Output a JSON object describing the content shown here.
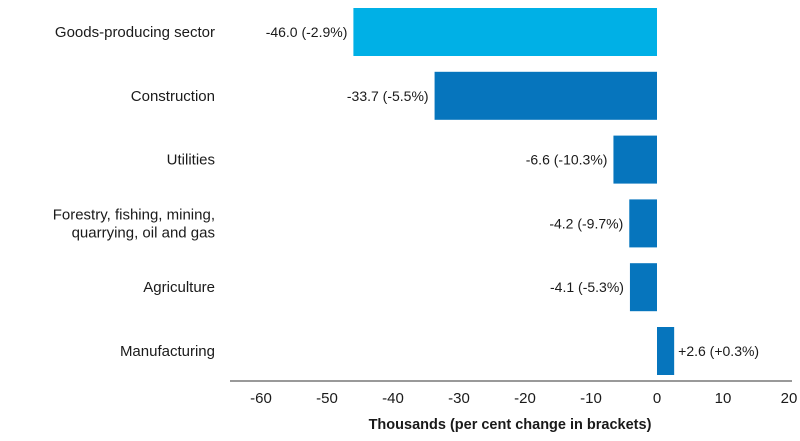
{
  "chart_data": {
    "type": "bar",
    "orientation": "horizontal",
    "title": "",
    "xlabel": "Thousands (per cent change in brackets)",
    "ylabel": "",
    "xlim": [
      -65,
      20
    ],
    "xticks": [
      -60,
      -50,
      -40,
      -30,
      -20,
      -10,
      0,
      10,
      20
    ],
    "grid": false,
    "categories": [
      [
        "Goods-producing sector"
      ],
      [
        "Construction"
      ],
      [
        "Utilities"
      ],
      [
        "Forestry, fishing, mining,",
        "quarrying, oil and gas"
      ],
      [
        "Agriculture"
      ],
      [
        "Manufacturing"
      ]
    ],
    "values": [
      -46.0,
      -33.7,
      -6.6,
      -4.2,
      -4.1,
      2.6
    ],
    "data_labels": [
      "-46.0 (-2.9%)",
      "-33.7 (-5.5%)",
      "-6.6 (-10.3%)",
      "-4.2 (-9.7%)",
      "-4.1 (-5.3%)",
      "+2.6 (+0.3%)"
    ],
    "colors": [
      "#00b0e6",
      "#0675bd",
      "#0675bd",
      "#0675bd",
      "#0675bd",
      "#0675bd"
    ]
  }
}
